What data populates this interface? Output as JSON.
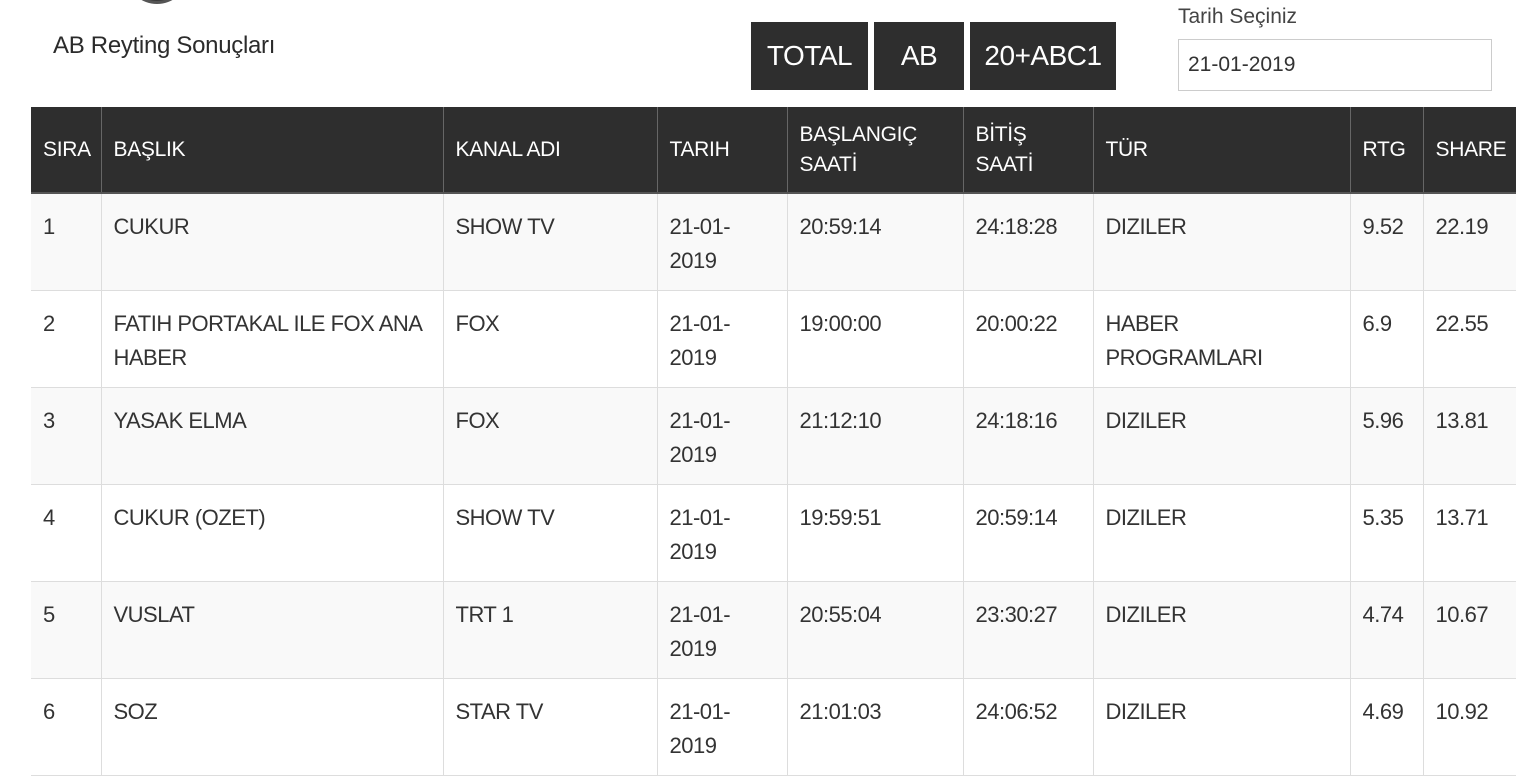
{
  "header": {
    "title": "AB Reyting Sonuçları"
  },
  "tabs": [
    {
      "label": "TOTAL"
    },
    {
      "label": "AB"
    },
    {
      "label": "20+ABC1"
    }
  ],
  "date_picker": {
    "label": "Tarih Seçiniz",
    "value": "21-01-2019"
  },
  "table": {
    "headers": {
      "sira": "SIRA",
      "baslik": "BAŞLIK",
      "kanal": "KANAL ADI",
      "tarih": "TARIH",
      "baslangic_1": "BAŞLANGIÇ",
      "baslangic_2": "SAATİ",
      "bitis_1": "BİTİŞ",
      "bitis_2": "SAATİ",
      "tur": "TÜR",
      "rtg": "RTG",
      "share": "SHARE"
    },
    "rows": [
      {
        "sira": "1",
        "baslik": "CUKUR",
        "kanal": "SHOW TV",
        "tarih": "21-01-2019",
        "baslangic": "20:59:14",
        "bitis": "24:18:28",
        "tur": "DIZILER",
        "rtg": "9.52",
        "share": "22.19"
      },
      {
        "sira": "2",
        "baslik": "FATIH PORTAKAL ILE FOX ANA HABER",
        "kanal": "FOX",
        "tarih": "21-01-2019",
        "baslangic": "19:00:00",
        "bitis": "20:00:22",
        "tur": "HABER PROGRAMLARI",
        "rtg": "6.9",
        "share": "22.55"
      },
      {
        "sira": "3",
        "baslik": "YASAK ELMA",
        "kanal": "FOX",
        "tarih": "21-01-2019",
        "baslangic": "21:12:10",
        "bitis": "24:18:16",
        "tur": "DIZILER",
        "rtg": "5.96",
        "share": "13.81"
      },
      {
        "sira": "4",
        "baslik": "CUKUR (OZET)",
        "kanal": "SHOW TV",
        "tarih": "21-01-2019",
        "baslangic": "19:59:51",
        "bitis": "20:59:14",
        "tur": "DIZILER",
        "rtg": "5.35",
        "share": "13.71"
      },
      {
        "sira": "5",
        "baslik": "VUSLAT",
        "kanal": "TRT 1",
        "tarih": "21-01-2019",
        "baslangic": "20:55:04",
        "bitis": "23:30:27",
        "tur": "DIZILER",
        "rtg": "4.74",
        "share": "10.67"
      },
      {
        "sira": "6",
        "baslik": "SOZ",
        "kanal": "STAR TV",
        "tarih": "21-01-2019",
        "baslangic": "21:01:03",
        "bitis": "24:06:52",
        "tur": "DIZILER",
        "rtg": "4.69",
        "share": "10.92"
      }
    ]
  }
}
